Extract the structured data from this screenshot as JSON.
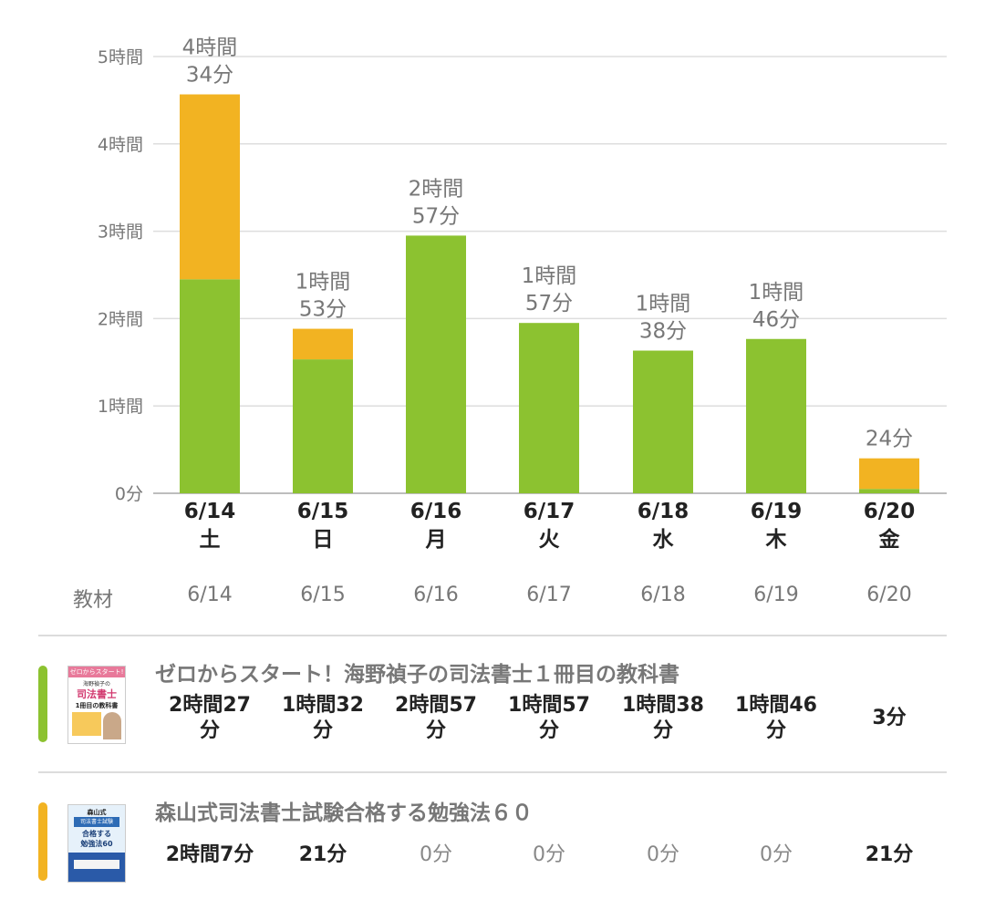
{
  "chart_data": {
    "type": "bar",
    "stacked": true,
    "categories": [
      "6/14",
      "6/15",
      "6/16",
      "6/17",
      "6/18",
      "6/19",
      "6/20"
    ],
    "weekdays": [
      "土",
      "日",
      "月",
      "火",
      "水",
      "木",
      "金"
    ],
    "series": [
      {
        "color": "#8cc230",
        "values": [
          147,
          92,
          177,
          117,
          98,
          106,
          3
        ]
      },
      {
        "color": "#f2b322",
        "values": [
          127,
          21,
          0,
          0,
          0,
          0,
          21
        ]
      }
    ],
    "totals_labels": [
      [
        "4時間",
        "34分"
      ],
      [
        "1時間",
        "53分"
      ],
      [
        "2時間",
        "57分"
      ],
      [
        "1時間",
        "57分"
      ],
      [
        "1時間",
        "38分"
      ],
      [
        "1時間",
        "46分"
      ],
      [
        "24分"
      ]
    ],
    "y_ticks": [
      {
        "value": 0,
        "label": "0分"
      },
      {
        "value": 60,
        "label": "1時間"
      },
      {
        "value": 120,
        "label": "2時間"
      },
      {
        "value": 180,
        "label": "3時間"
      },
      {
        "value": 240,
        "label": "4時間"
      },
      {
        "value": 300,
        "label": "5時間"
      }
    ],
    "ylim": [
      0,
      300
    ],
    "grid": true
  },
  "table": {
    "header_label": "教材",
    "dates": [
      "6/14",
      "6/15",
      "6/16",
      "6/17",
      "6/18",
      "6/19",
      "6/20"
    ]
  },
  "books": [
    {
      "title": "ゼロからスタート！海野禎子の司法書士１冊目の教科書",
      "color": "#8cc230",
      "times": [
        "2時間27\n分",
        "1時間32\n分",
        "2時間57\n分",
        "1時間57\n分",
        "1時間38\n分",
        "1時間46\n分",
        "3分"
      ],
      "cover": {
        "l1": "ゼロからスタート!",
        "l2": "海野禎子の",
        "l3": "司法書士",
        "l4": "1冊目の教科書"
      }
    },
    {
      "title": "森山式司法書士試験合格する勉強法６０",
      "color": "#f2b322",
      "times": [
        "2時間7分",
        "21分",
        "0分",
        "0分",
        "0分",
        "0分",
        "21分"
      ],
      "cover": {
        "l1": "森山式",
        "l2": "司法書士試験",
        "l3": "合格する",
        "l4": "勉強法60"
      }
    }
  ]
}
